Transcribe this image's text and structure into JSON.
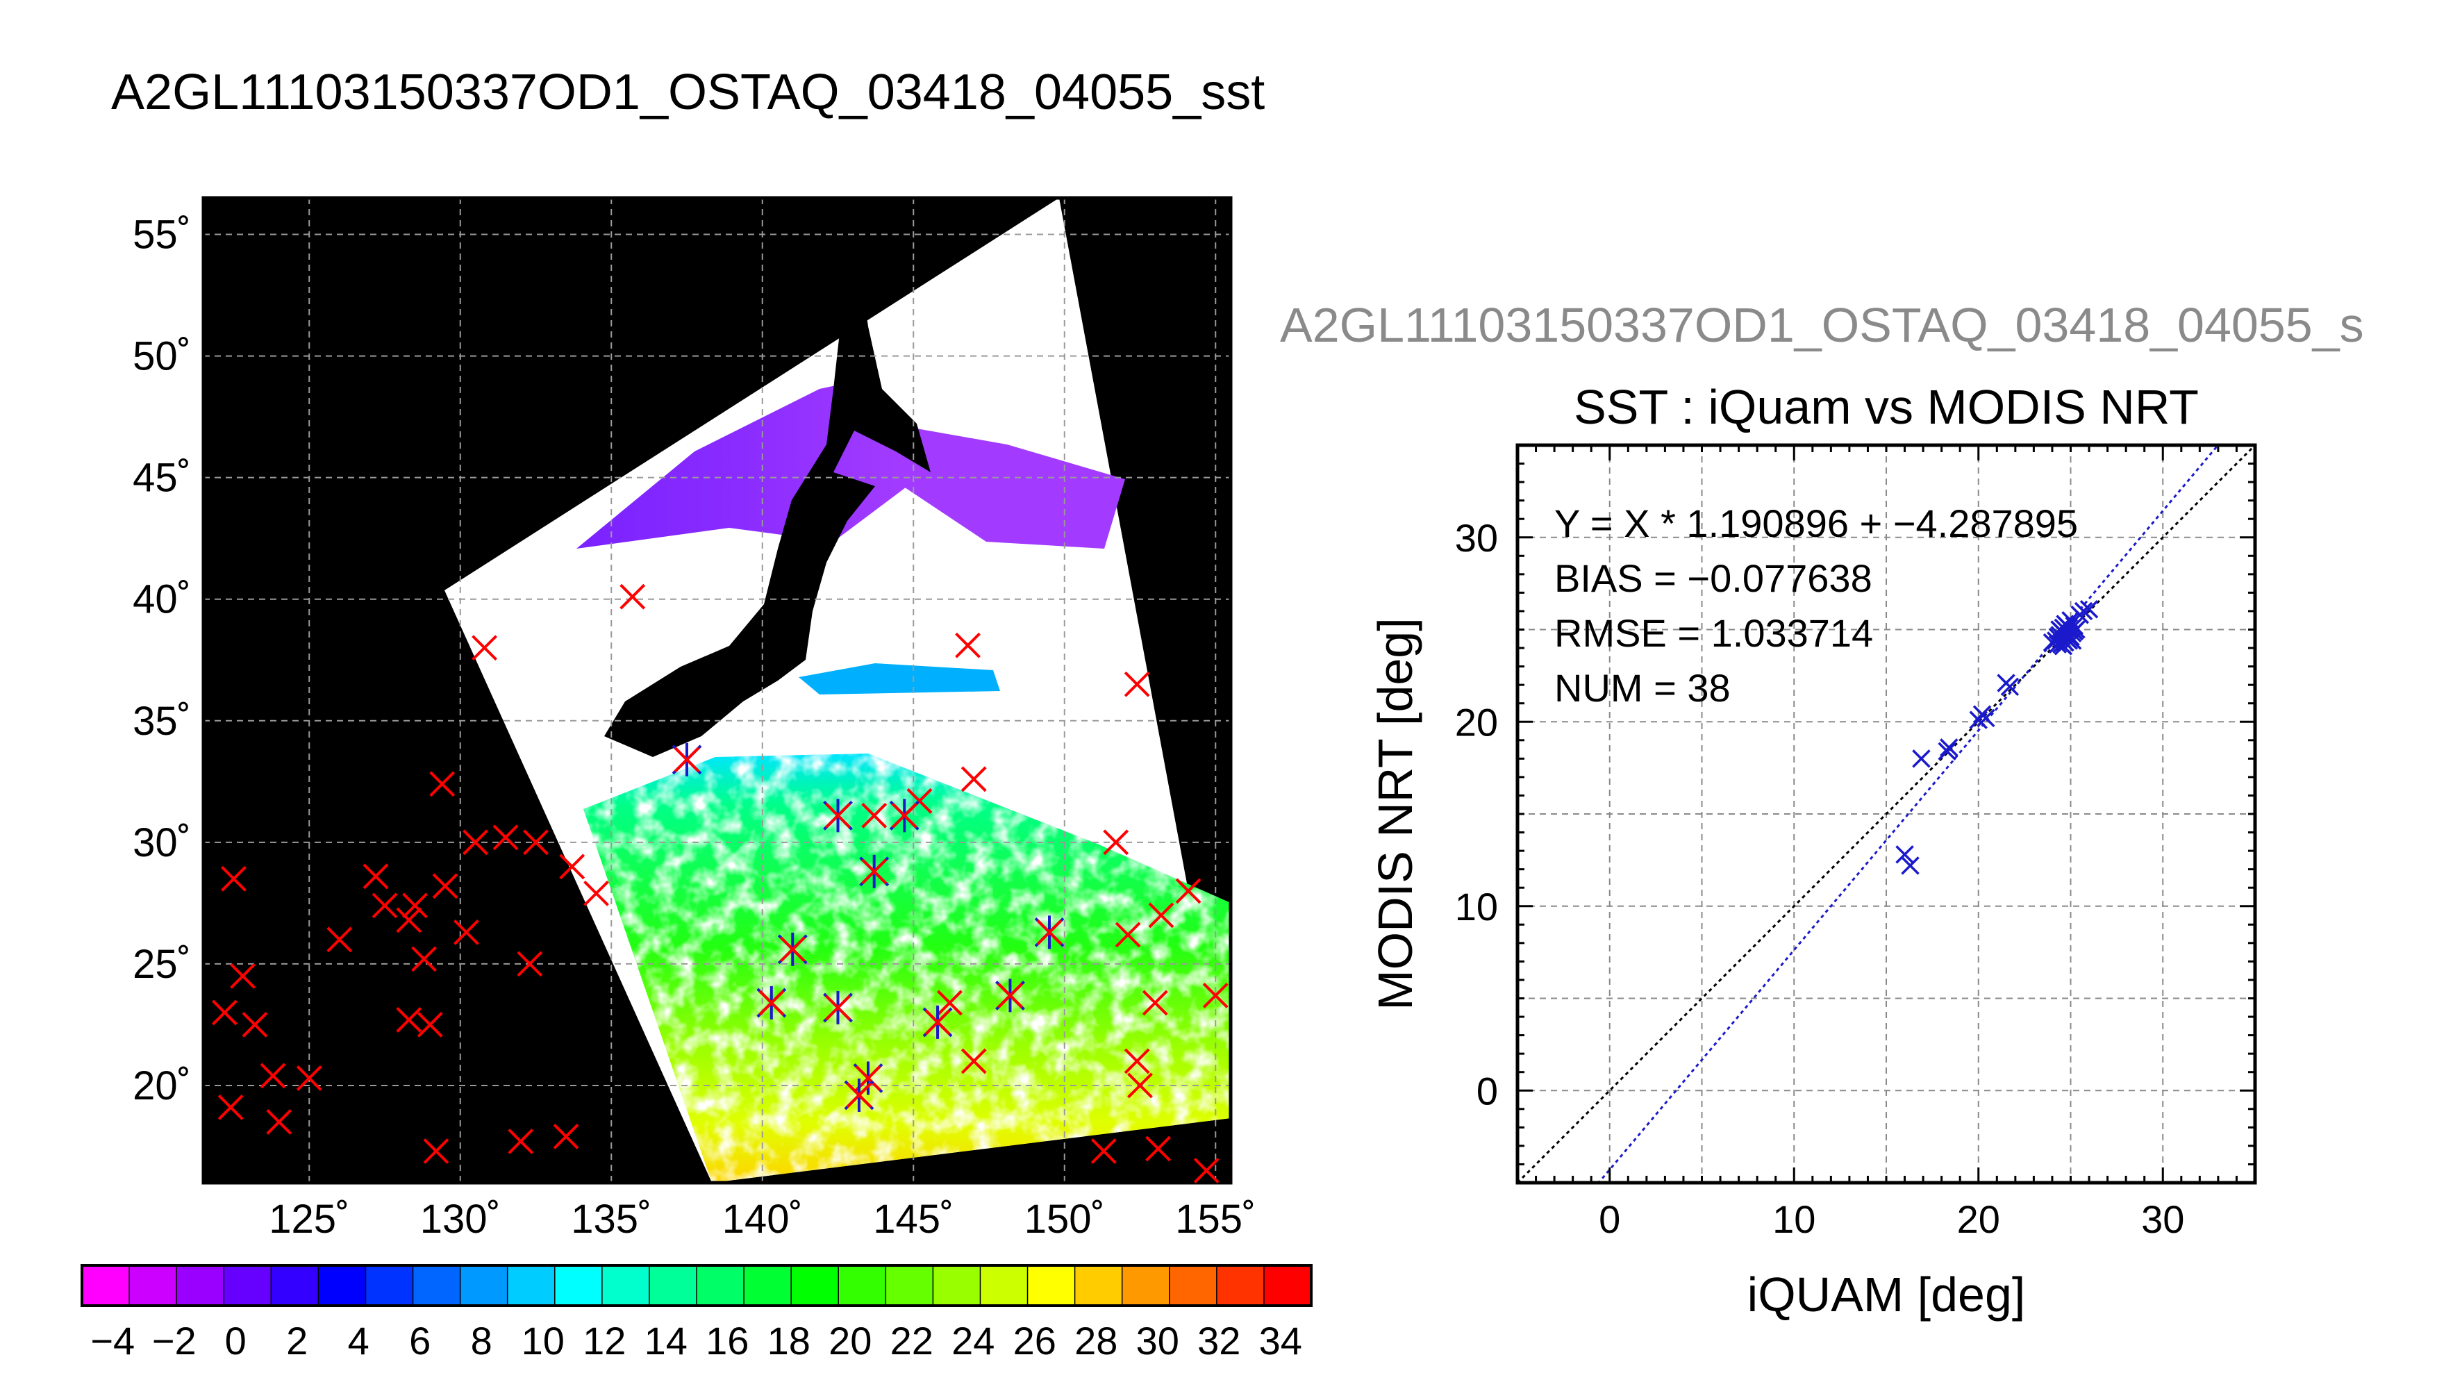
{
  "titles": {
    "main": "A2GL11103150337OD1_OSTAQ_03418_04055_sst",
    "secondary": "A2GL11103150337OD1_OSTAQ_03418_04055_s"
  },
  "map": {
    "lon_ticks": [
      "125˚",
      "130˚",
      "135˚",
      "140˚",
      "145˚",
      "150˚",
      "155˚"
    ],
    "lat_ticks": [
      "55˚",
      "50˚",
      "45˚",
      "40˚",
      "35˚",
      "30˚",
      "25˚",
      "20˚"
    ],
    "lon_range": [
      121.5,
      155.5
    ],
    "lat_range": [
      16,
      56.5
    ],
    "background_color": "#000000",
    "cloud_color": "#ffffff",
    "marker_colors": {
      "iquam": "#ff0000",
      "matched": "#1a1acc"
    },
    "iquam_points": [
      [
        122.5,
        28.5
      ],
      [
        122.8,
        24.5
      ],
      [
        122.2,
        23
      ],
      [
        123.2,
        22.5
      ],
      [
        123.8,
        20.4
      ],
      [
        122.4,
        19.1
      ],
      [
        124,
        18.5
      ],
      [
        125,
        20.3
      ],
      [
        126,
        26
      ],
      [
        127.2,
        28.6
      ],
      [
        127.5,
        27.4
      ],
      [
        128.3,
        26.8
      ],
      [
        128.5,
        27.4
      ],
      [
        128.8,
        25.2
      ],
      [
        129.5,
        28.2
      ],
      [
        129.4,
        32.4
      ],
      [
        128.3,
        22.7
      ],
      [
        129,
        22.5
      ],
      [
        129.2,
        17.3
      ],
      [
        130.2,
        26.3
      ],
      [
        130.5,
        30
      ],
      [
        130.8,
        38
      ],
      [
        131.5,
        30.2
      ],
      [
        132.3,
        25
      ],
      [
        132,
        17.7
      ],
      [
        132.5,
        30
      ],
      [
        133.5,
        17.9
      ],
      [
        133.7,
        29
      ],
      [
        134.5,
        27.9
      ],
      [
        135.7,
        40.1
      ],
      [
        146.8,
        38.1
      ],
      [
        152.4,
        36.5
      ],
      [
        147,
        32.6
      ],
      [
        145.2,
        31.7
      ],
      [
        143.7,
        31.1
      ],
      [
        151.7,
        30
      ],
      [
        152.1,
        26.2
      ],
      [
        153.2,
        27
      ],
      [
        154.1,
        28
      ],
      [
        155,
        23.7
      ],
      [
        153,
        23.4
      ],
      [
        152.4,
        21
      ],
      [
        152.5,
        20
      ],
      [
        147,
        21
      ],
      [
        146.2,
        23.4
      ],
      [
        151.3,
        17.3
      ],
      [
        153.1,
        17.4
      ],
      [
        154.7,
        16.5
      ],
      [
        148.2,
        23.7
      ]
    ],
    "matched_points": [
      [
        137.5,
        33.4
      ],
      [
        142.5,
        31.1
      ],
      [
        144.7,
        31.1
      ],
      [
        143.7,
        28.8
      ],
      [
        141,
        25.6
      ],
      [
        149.5,
        26.3
      ],
      [
        140.3,
        23.4
      ],
      [
        142.5,
        23.2
      ],
      [
        145.8,
        22.6
      ],
      [
        143.5,
        20.3
      ],
      [
        143.2,
        19.6
      ],
      [
        148.2,
        23.7
      ]
    ]
  },
  "colorbar": {
    "tick_labels": [
      "−4",
      "−2",
      "0",
      "2",
      "4",
      "6",
      "8",
      "10",
      "12",
      "14",
      "16",
      "18",
      "20",
      "22",
      "24",
      "26",
      "28",
      "30",
      "32",
      "34"
    ],
    "range": [
      -5,
      35
    ],
    "colors": [
      "#ff00ff",
      "#cc00ff",
      "#9900ff",
      "#6600ff",
      "#3300ff",
      "#0000ff",
      "#0033ff",
      "#0066ff",
      "#0099ff",
      "#00ccff",
      "#00ffff",
      "#00ffcc",
      "#00ff99",
      "#00ff66",
      "#00ff33",
      "#00ff00",
      "#33ff00",
      "#66ff00",
      "#99ff00",
      "#ccff00",
      "#ffff00",
      "#ffcc00",
      "#ff9900",
      "#ff6600",
      "#ff3300",
      "#ff0000"
    ]
  },
  "chart_data": {
    "type": "scatter",
    "title": "SST : iQuam vs MODIS NRT",
    "xlabel": "iQUAM [deg]",
    "ylabel": "MODIS NRT [deg]",
    "xlim": [
      -5,
      35
    ],
    "ylim": [
      -5,
      35
    ],
    "xticks": [
      "0",
      "10",
      "20",
      "30"
    ],
    "yticks": [
      "0",
      "10",
      "20",
      "30"
    ],
    "grid": true,
    "stats": [
      "Y = X * 1.190896 + −4.287895",
      "BIAS = −0.077638",
      "RMSE = 1.033714",
      "NUM = 38"
    ],
    "fit": {
      "slope": 1.190896,
      "intercept": -4.287895,
      "color": "#1a1acc"
    },
    "identity_line_color": "#000000",
    "marker_color": "#1a1acc",
    "points": [
      [
        16.0,
        12.8
      ],
      [
        16.3,
        12.2
      ],
      [
        16.9,
        18.0
      ],
      [
        18.4,
        18.6
      ],
      [
        18.3,
        18.4
      ],
      [
        20.0,
        20.1
      ],
      [
        20.2,
        20.4
      ],
      [
        20.4,
        20.2
      ],
      [
        21.5,
        22.1
      ],
      [
        21.7,
        21.9
      ],
      [
        24.0,
        24.3
      ],
      [
        24.3,
        24.6
      ],
      [
        24.4,
        25.0
      ],
      [
        24.5,
        24.2
      ],
      [
        24.6,
        24.8
      ],
      [
        24.7,
        25.3
      ],
      [
        24.8,
        24.5
      ],
      [
        24.9,
        25.1
      ],
      [
        25.0,
        24.6
      ],
      [
        25.2,
        24.9
      ],
      [
        25.1,
        24.4
      ],
      [
        24.6,
        24.1
      ],
      [
        25.5,
        25.8
      ],
      [
        25.7,
        26.0
      ],
      [
        26.0,
        26.1
      ],
      [
        24.8,
        25.2
      ],
      [
        24.5,
        24.9
      ],
      [
        24.9,
        24.7
      ],
      [
        25.3,
        25.0
      ],
      [
        24.2,
        24.4
      ],
      [
        24.7,
        24.3
      ],
      [
        25.0,
        25.5
      ],
      [
        24.4,
        24.7
      ],
      [
        25.1,
        24.8
      ],
      [
        24.6,
        25.1
      ],
      [
        24.9,
        24.4
      ],
      [
        25.2,
        25.2
      ],
      [
        24.3,
        24.2
      ]
    ]
  }
}
